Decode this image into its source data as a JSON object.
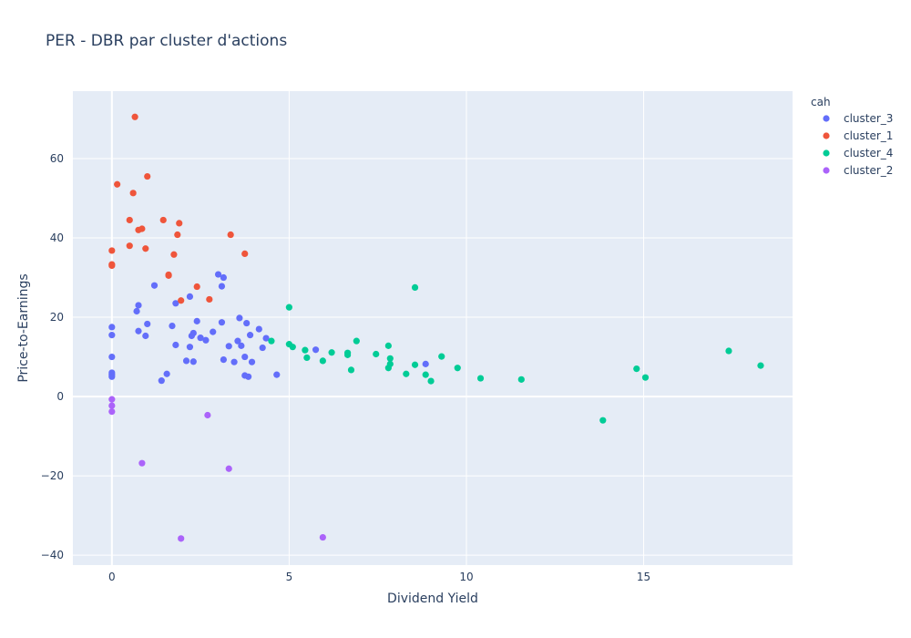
{
  "chart_data": {
    "type": "scatter",
    "title": "PER - DBR par cluster d'actions",
    "xlabel": "Dividend Yield",
    "ylabel": "Price-to-Earnings",
    "xlim": [
      -1.1,
      19.2
    ],
    "ylim": [
      -42.5,
      77
    ],
    "xticks": [
      0,
      5,
      10,
      15
    ],
    "yticks": [
      -40,
      -20,
      0,
      20,
      40,
      60
    ],
    "grid": true,
    "legend": {
      "title": "cah",
      "position": "top-right"
    },
    "series": [
      {
        "name": "cluster_3",
        "color": "#636efa",
        "points": [
          [
            0,
            17.5
          ],
          [
            0,
            15.5
          ],
          [
            0,
            10
          ],
          [
            0,
            6
          ],
          [
            0,
            5.5
          ],
          [
            0,
            5
          ],
          [
            0.7,
            21.5
          ],
          [
            0.75,
            23
          ],
          [
            0.75,
            16.5
          ],
          [
            0.95,
            15.3
          ],
          [
            1.0,
            18.3
          ],
          [
            1.2,
            28
          ],
          [
            1.4,
            4
          ],
          [
            1.55,
            5.7
          ],
          [
            1.7,
            17.8
          ],
          [
            1.8,
            13
          ],
          [
            1.8,
            23.5
          ],
          [
            2.1,
            9
          ],
          [
            2.2,
            12.5
          ],
          [
            2.2,
            25.2
          ],
          [
            2.25,
            15.3
          ],
          [
            2.3,
            16
          ],
          [
            2.3,
            8.8
          ],
          [
            2.4,
            19
          ],
          [
            2.5,
            14.8
          ],
          [
            2.65,
            14.2
          ],
          [
            2.85,
            16.3
          ],
          [
            3.0,
            30.8
          ],
          [
            3.1,
            27.8
          ],
          [
            3.1,
            18.7
          ],
          [
            3.15,
            30
          ],
          [
            3.15,
            9.3
          ],
          [
            3.3,
            12.7
          ],
          [
            3.45,
            8.7
          ],
          [
            3.55,
            14
          ],
          [
            3.6,
            19.8
          ],
          [
            3.65,
            12.8
          ],
          [
            3.75,
            10
          ],
          [
            3.75,
            5.3
          ],
          [
            3.8,
            18.5
          ],
          [
            3.85,
            5
          ],
          [
            3.9,
            15.5
          ],
          [
            3.95,
            8.7
          ],
          [
            4.15,
            17
          ],
          [
            4.25,
            12.3
          ],
          [
            4.35,
            14.7
          ],
          [
            4.65,
            5.5
          ],
          [
            5.75,
            11.8
          ],
          [
            8.85,
            8.2
          ]
        ]
      },
      {
        "name": "cluster_1",
        "color": "#ef553b",
        "points": [
          [
            0,
            36.8
          ],
          [
            0,
            33.3
          ],
          [
            0,
            33
          ],
          [
            0.15,
            53.5
          ],
          [
            0.5,
            44.5
          ],
          [
            0.5,
            38
          ],
          [
            0.6,
            51.3
          ],
          [
            0.65,
            70.5
          ],
          [
            0.75,
            42
          ],
          [
            0.85,
            42.3
          ],
          [
            0.95,
            37.3
          ],
          [
            1.0,
            55.5
          ],
          [
            1.45,
            44.5
          ],
          [
            1.6,
            30.5
          ],
          [
            1.6,
            30.7
          ],
          [
            1.75,
            35.8
          ],
          [
            1.85,
            40.8
          ],
          [
            1.9,
            43.7
          ],
          [
            1.95,
            24.2
          ],
          [
            2.4,
            27.7
          ],
          [
            2.75,
            24.5
          ],
          [
            3.35,
            40.8
          ],
          [
            3.75,
            36
          ]
        ]
      },
      {
        "name": "cluster_4",
        "color": "#00cc96",
        "points": [
          [
            4.5,
            14
          ],
          [
            5.0,
            13.2
          ],
          [
            5.0,
            22.5
          ],
          [
            5.1,
            12.5
          ],
          [
            5.45,
            11.7
          ],
          [
            5.5,
            9.8
          ],
          [
            5.95,
            9
          ],
          [
            6.2,
            11.1
          ],
          [
            6.65,
            10.5
          ],
          [
            6.65,
            11
          ],
          [
            6.75,
            6.7
          ],
          [
            6.9,
            14
          ],
          [
            7.45,
            10.7
          ],
          [
            7.8,
            7.2
          ],
          [
            7.8,
            12.8
          ],
          [
            7.85,
            9.6
          ],
          [
            7.85,
            8.2
          ],
          [
            8.3,
            5.7
          ],
          [
            8.55,
            27.5
          ],
          [
            8.55,
            8
          ],
          [
            8.85,
            5.5
          ],
          [
            9.0,
            3.9
          ],
          [
            9.3,
            10.1
          ],
          [
            9.75,
            7.2
          ],
          [
            10.4,
            4.6
          ],
          [
            11.55,
            4.3
          ],
          [
            13.85,
            -6
          ],
          [
            14.8,
            7
          ],
          [
            15.05,
            4.8
          ],
          [
            17.4,
            11.5
          ],
          [
            18.3,
            7.8
          ]
        ]
      },
      {
        "name": "cluster_2",
        "color": "#ab63fa",
        "points": [
          [
            0,
            -0.7
          ],
          [
            0,
            -2.3
          ],
          [
            0,
            -3.8
          ],
          [
            0.85,
            -16.8
          ],
          [
            1.95,
            -35.8
          ],
          [
            2.7,
            -4.7
          ],
          [
            3.3,
            -18.2
          ],
          [
            5.95,
            -35.5
          ]
        ]
      }
    ]
  }
}
